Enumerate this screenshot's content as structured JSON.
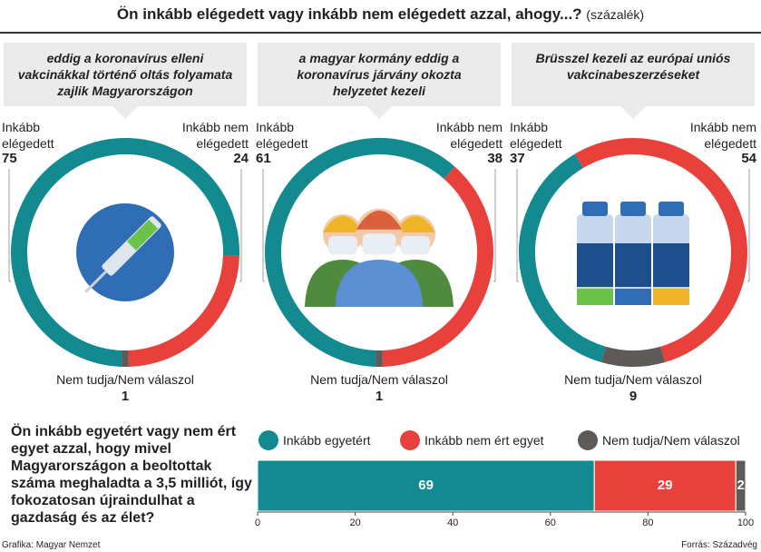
{
  "title": "Ön inkább elégedett vagy inkább nem elégedett azzal, ahogy...?",
  "unit": "(százalék)",
  "chart_data": [
    {
      "type": "donut",
      "title": "eddig a koronavírus elleni vakcinákkal történő oltás folyamata zajlik Magyarországon",
      "categories": [
        "Inkább elégedett",
        "Inkább nem elégedett",
        "Nem tudja/Nem válaszol"
      ],
      "values": [
        75,
        24,
        1
      ],
      "colors": [
        "#138a8f",
        "#e8413c",
        "#5e5a58"
      ]
    },
    {
      "type": "donut",
      "title": "a magyar kormány eddig a koronavírus járvány okozta helyzetet kezeli",
      "categories": [
        "Inkább elégedett",
        "Inkább nem elégedett",
        "Nem tudja/Nem válaszol"
      ],
      "values": [
        61,
        38,
        1
      ],
      "colors": [
        "#138a8f",
        "#e8413c",
        "#5e5a58"
      ]
    },
    {
      "type": "donut",
      "title": "Brüsszel kezeli az európai uniós vakcinabeszerzéseket",
      "categories": [
        "Inkább elégedett",
        "Inkább nem elégedett",
        "Nem tudja/Nem válaszol"
      ],
      "values": [
        37,
        54,
        9
      ],
      "colors": [
        "#138a8f",
        "#e8413c",
        "#5e5a58"
      ]
    },
    {
      "type": "stacked_bar",
      "title": "Ön inkább egyetért vagy nem ért egyet azzal, hogy mivel Magyarországon a beoltottak száma meghaladta a 3,5 milliót, így fokozatosan újraindulhat a gazdaság és az élet?",
      "series": [
        {
          "name": "Inkább egyetért",
          "color": "#138a8f",
          "values": [
            69
          ]
        },
        {
          "name": "Inkább nem ért egyet",
          "color": "#e8413c",
          "values": [
            29
          ]
        },
        {
          "name": "Nem tudja/Nem válaszol",
          "color": "#5e5a58",
          "values": [
            2
          ]
        }
      ],
      "xlim": [
        0,
        100
      ],
      "xticks": [
        0,
        20,
        40,
        60,
        80,
        100
      ]
    }
  ],
  "footer": {
    "credit": "Grafika: Magyar Nemzet",
    "source": "Forrás: Századvég"
  }
}
